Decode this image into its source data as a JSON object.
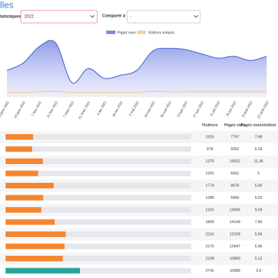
{
  "header": {
    "title": "lles",
    "year_label": "tatistiques",
    "year_value": "2022",
    "compare_label": "Comparer à",
    "compare_value": "-"
  },
  "chart_data": {
    "type": "area",
    "categories": [
      "10 janv 2022",
      "24 janv 2022",
      "7 févr 2022",
      "21 févr 2022",
      "7 mars 2022",
      "21 mars 2022",
      "4 avr 2022",
      "18 avr 2022",
      "2 mai 2022",
      "16 mai 2022",
      "30 mai 2022",
      "13 juin 2022",
      "27 juin 2022",
      "11 juil 2022",
      "25 juil 2022",
      "8 août 2022",
      "22 août 2022"
    ],
    "series": [
      {
        "name": "Pages vues",
        "color": "#5b6fd6",
        "values": [
          44,
          56,
          83,
          89,
          24,
          47,
          31,
          36,
          44,
          76,
          80,
          78,
          71,
          64,
          67,
          60,
          67
        ]
      },
      {
        "name": "Visiteurs uniques",
        "color": "#f7c77e",
        "values": [
          8,
          8,
          9,
          10,
          8,
          8,
          8,
          8,
          8,
          10,
          9,
          9,
          9,
          9,
          9,
          9,
          9
        ]
      }
    ],
    "ylim": [
      0,
      100
    ]
  },
  "table": {
    "columns": [
      "Visiteurs",
      "Pages vues",
      "Pages vues/visiteur"
    ],
    "rows": [
      [
        1015,
        7797,
        7.68
      ],
      [
        978,
        6052,
        6.18
      ],
      [
        1375,
        15622,
        11.36
      ],
      [
        1201,
        6001,
        5
      ],
      [
        1774,
        8976,
        5.06
      ],
      [
        1386,
        6966,
        5.03
      ],
      [
        1315,
        12606,
        9.59
      ],
      [
        1806,
        14149,
        7.83
      ],
      [
        2216,
        12328,
        5.56
      ],
      [
        2175,
        12947,
        5.95
      ],
      [
        2108,
        10800,
        5.12
      ],
      [
        2741,
        10689,
        3.9
      ]
    ],
    "bar_colors": [
      "#f5862f",
      "#f5862f",
      "#f5862f",
      "#f5862f",
      "#f5862f",
      "#f5862f",
      "#f5862f",
      "#f5862f",
      "#f5862f",
      "#f5862f",
      "#f5862f",
      "#26a69a"
    ]
  }
}
